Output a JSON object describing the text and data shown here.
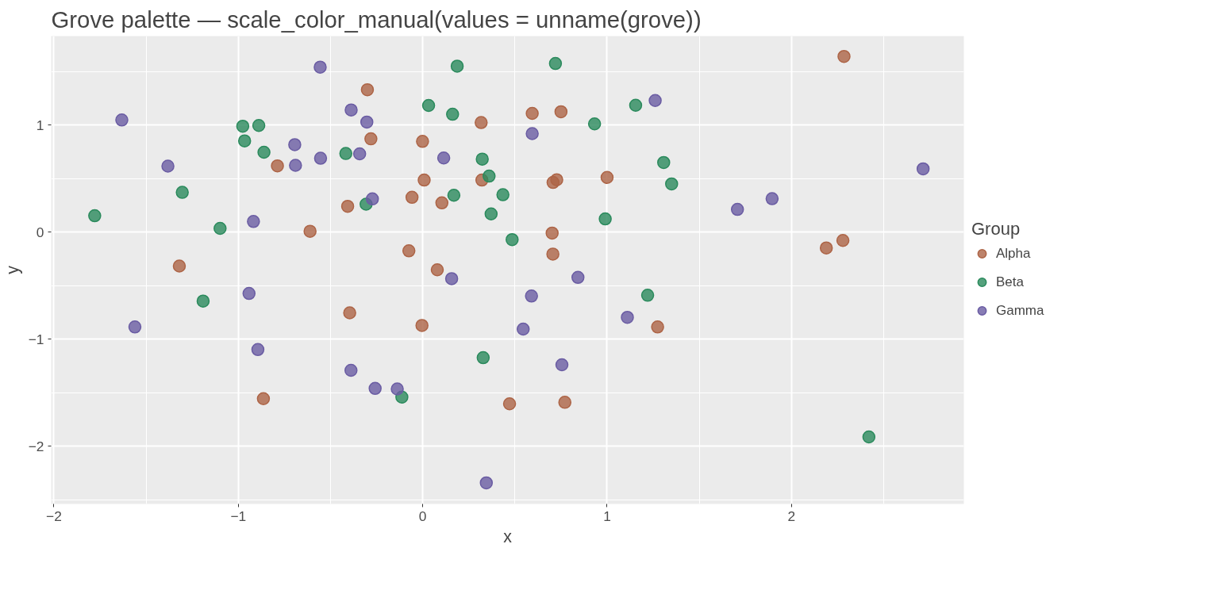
{
  "chart_data": {
    "type": "scatter",
    "title": "Grove palette — scale_color_manual(values = unname(grove))",
    "xlabel": "x",
    "ylabel": "y",
    "legend_title": "Group",
    "legend": "right",
    "grid": true,
    "marker": "circle",
    "xlim": [
      -2.015,
      2.935
    ],
    "ylim": [
      -2.54,
      1.83
    ],
    "xticks": [
      -2,
      -1,
      0,
      1,
      2
    ],
    "yticks": [
      -2,
      -1,
      0,
      1
    ],
    "series": [
      {
        "name": "Alpha",
        "color": "#ad6446",
        "x": [
          2.285,
          -0.3,
          -0.281,
          0.317,
          0.594,
          0.75,
          -0.001,
          0.321,
          0.008,
          0.707,
          0.727,
          1.0,
          -0.788,
          -0.611,
          -0.407,
          -1.32,
          -0.058,
          0.104,
          0.702,
          -0.075,
          0.706,
          0.079,
          2.189,
          2.279,
          -0.396,
          -0.864,
          1.274,
          -0.004,
          0.471,
          0.771
        ],
        "values": [
          1.64,
          1.329,
          0.87,
          1.022,
          1.108,
          1.123,
          0.846,
          0.485,
          0.485,
          0.463,
          0.488,
          0.51,
          0.618,
          0.007,
          0.24,
          -0.318,
          0.324,
          0.272,
          -0.01,
          -0.176,
          -0.206,
          -0.353,
          -0.149,
          -0.079,
          -0.755,
          -1.557,
          -0.887,
          -0.873,
          -1.605,
          -1.591
        ]
      },
      {
        "name": "Beta",
        "color": "#2a8a5c",
        "x": [
          0.187,
          0.72,
          0.032,
          0.162,
          0.932,
          1.155,
          -0.976,
          -0.889,
          -0.966,
          -0.861,
          -0.417,
          0.323,
          0.36,
          1.307,
          1.35,
          -0.307,
          0.169,
          0.435,
          0.371,
          0.99,
          0.485,
          -1.304,
          -1.779,
          -1.099,
          -1.191,
          1.22,
          0.328,
          -0.113,
          2.42
        ],
        "values": [
          1.549,
          1.574,
          1.182,
          1.1,
          1.01,
          1.184,
          0.988,
          0.995,
          0.851,
          0.745,
          0.733,
          0.681,
          0.522,
          0.649,
          0.449,
          0.26,
          0.343,
          0.348,
          0.169,
          0.122,
          -0.071,
          0.37,
          0.152,
          0.034,
          -0.645,
          -0.591,
          -1.174,
          -1.542,
          -1.914
        ]
      },
      {
        "name": "Gamma",
        "color": "#6a5ca3",
        "x": [
          -0.556,
          -1.632,
          -0.694,
          -0.69,
          -0.554,
          -0.388,
          -1.382,
          -0.918,
          -0.303,
          -0.342,
          1.261,
          0.594,
          0.114,
          -0.273,
          2.714,
          1.707,
          1.895,
          -1.561,
          -0.942,
          -0.894,
          -0.389,
          0.157,
          0.842,
          0.59,
          1.11,
          0.545,
          0.755,
          -0.258,
          -0.138,
          0.345
        ],
        "values": [
          1.54,
          1.046,
          0.816,
          0.623,
          0.689,
          1.14,
          0.615,
          0.098,
          1.027,
          0.73,
          1.228,
          0.919,
          0.691,
          0.309,
          0.59,
          0.211,
          0.311,
          -0.887,
          -0.574,
          -1.098,
          -1.292,
          -0.436,
          -0.424,
          -0.598,
          -0.797,
          -0.907,
          -1.24,
          -1.461,
          -1.466,
          -2.343
        ]
      }
    ]
  }
}
